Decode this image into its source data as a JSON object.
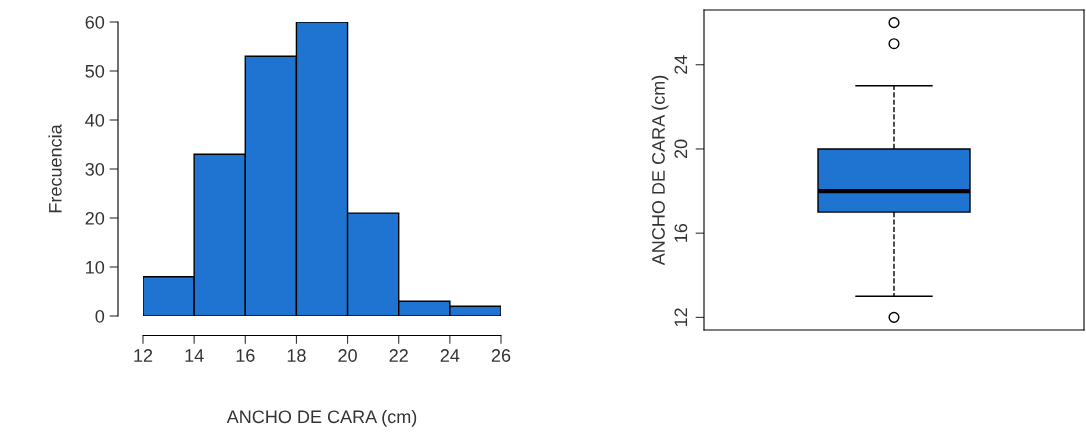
{
  "chart_data": [
    {
      "type": "histogram",
      "xlabel": "ANCHO DE CARA (cm)",
      "ylabel": "Frecuencia",
      "bins": [
        12,
        14,
        16,
        18,
        20,
        22,
        24,
        26
      ],
      "values": [
        8,
        33,
        53,
        60,
        21,
        3,
        2
      ],
      "color": "#1e74d0",
      "xlim": [
        12,
        26
      ],
      "ylim": [
        0,
        60
      ],
      "xticks": [
        12,
        14,
        16,
        18,
        20,
        22,
        24,
        26
      ],
      "yticks": [
        0,
        10,
        20,
        30,
        40,
        50,
        60
      ],
      "grid": false,
      "legend": false
    },
    {
      "type": "box",
      "ylabel": "ANCHO DE CARA (cm)",
      "categories": [
        null
      ],
      "boxes": [
        {
          "low": 13,
          "q1": 17,
          "median": 18,
          "q3": 20,
          "high": 23,
          "outliers": [
            12,
            25,
            26
          ]
        }
      ],
      "color": "#1e74d0",
      "ylim": [
        11.4,
        26.6
      ],
      "yticks": [
        12,
        16,
        20,
        24
      ],
      "grid": false,
      "legend": false
    }
  ]
}
